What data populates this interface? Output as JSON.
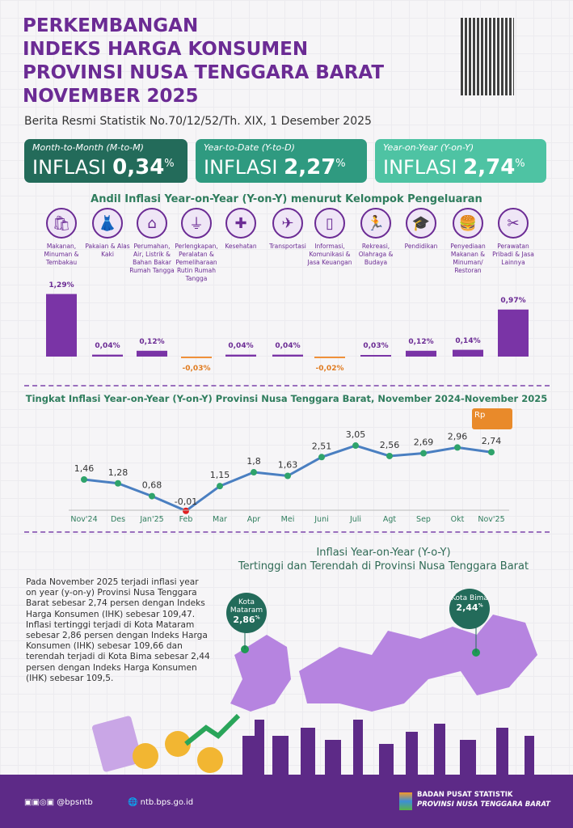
{
  "title": {
    "lines": [
      "PERKEMBANGAN",
      "INDEKS HARGA KONSUMEN",
      "PROVINSI NUSA TENGGARA BARAT",
      "NOVEMBER 2025"
    ],
    "subtitle": "Berita Resmi Statistik No.70/12/52/Th. XIX, 1 Desember 2025"
  },
  "summary": [
    {
      "label": "Month-to-Month (M-to-M)",
      "word": "INFLASI",
      "value": "0,34",
      "unit": "%",
      "color": "#236b5a"
    },
    {
      "label": "Year-to-Date (Y-to-D)",
      "word": "INFLASI",
      "value": "2,27",
      "unit": "%",
      "color": "#2f9a80"
    },
    {
      "label": "Year-on-Year (Y-on-Y)",
      "word": "INFLASI",
      "value": "2,74",
      "unit": "%",
      "color": "#4ec3a3"
    }
  ],
  "chart_data": [
    {
      "type": "bar",
      "title": "Andil Inflasi Year-on-Year (Y-on-Y) menurut Kelompok Pengeluaran",
      "categories": [
        "Makanan, Minuman & Tembakau",
        "Pakaian & Alas Kaki",
        "Perumahan, Air, Listrik & Bahan Bakar Rumah Tangga",
        "Perlengkapan, Peralatan & Pemeliharaan Rutin Rumah Tangga",
        "Kesehatan",
        "Transportasi",
        "Informasi, Komunikasi & Jasa Keuangan",
        "Rekreasi, Olahraga & Budaya",
        "Pendidikan",
        "Penyediaan Makanan & Minuman/ Restoran",
        "Perawatan Pribadi & Jasa Lainnya"
      ],
      "icons": [
        "grocery-bag-icon",
        "dress-icon",
        "house-icon",
        "plug-icon",
        "first-aid-icon",
        "airplane-icon",
        "smartphone-icon",
        "runner-icon",
        "graduation-cap-icon",
        "fast-food-icon",
        "scissors-icon"
      ],
      "values": [
        1.29,
        0.04,
        0.12,
        -0.03,
        0.04,
        0.04,
        -0.02,
        0.03,
        0.12,
        0.14,
        0.97
      ],
      "labels": [
        "1,29%",
        "0,04%",
        "0,12%",
        "-0,03%",
        "0,04%",
        "0,04%",
        "-0,02%",
        "0,03%",
        "0,12%",
        "0,14%",
        "0,97%"
      ],
      "colors": {
        "positive": "#7a34a6",
        "negative": "#f0913a"
      }
    },
    {
      "type": "line",
      "title": "Tingkat Inflasi Year-on-Year (Y-on-Y) Provinsi Nusa Tenggara Barat, November 2024-November 2025",
      "x": [
        "Nov'24",
        "Des",
        "Jan'25",
        "Feb",
        "Mar",
        "Apr",
        "Mei",
        "Juni",
        "Juli",
        "Agt",
        "Sep",
        "Okt",
        "Nov'25"
      ],
      "values": [
        1.46,
        1.28,
        0.68,
        -0.01,
        1.15,
        1.8,
        1.63,
        2.51,
        3.05,
        2.56,
        2.69,
        2.96,
        2.74
      ],
      "labels": [
        "1,46",
        "1,28",
        "0,68",
        "-0,01",
        "1,15",
        "1,8",
        "1,63",
        "2,51",
        "3,05",
        "2,56",
        "2,69",
        "2,96",
        "2,74"
      ],
      "colors": {
        "line": "#4a7fc1",
        "point": "#2fa36b",
        "min_point": "#e02020"
      }
    }
  ],
  "map": {
    "title1": "Inflasi Year-on-Year (Y-o-Y)",
    "title2": "Tertinggi dan Terendah di Provinsi Nusa Tenggara Barat",
    "cities": [
      {
        "name": "Kota Mataram",
        "value": "2,86",
        "unit": "%"
      },
      {
        "name": "Kota Bima",
        "value": "2,44",
        "unit": "%"
      }
    ],
    "paragraph": "Pada November 2025 terjadi inflasi year on year (y-on-y) Provinsi Nusa Tenggara Barat sebesar 2,74 persen dengan Indeks Harga Konsumen (IHK) sebesar 109,47. Inflasi tertinggi terjadi di Kota Mataram sebesar 2,86 persen dengan Indeks Harga Konsumen (IHK) sebesar 109,66 dan terendah terjadi di Kota Bima sebesar 2,44 persen dengan Indeks Harga Konsumen (IHK) sebesar 109,5."
  },
  "truck_label": "Rp",
  "footer": {
    "social": "@bpsntb",
    "website": "ntb.bps.go.id",
    "org1": "BADAN PUSAT STATISTIK",
    "org2": "PROVINSI NUSA TENGGARA BARAT"
  }
}
